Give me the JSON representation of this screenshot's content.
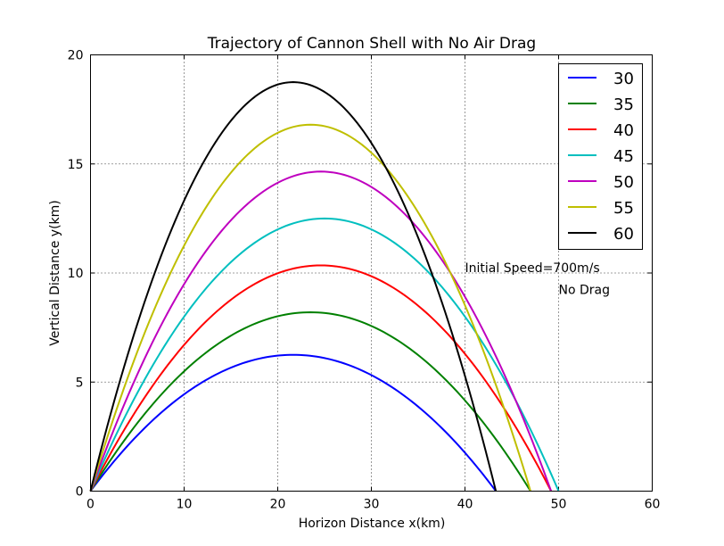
{
  "chart_data": {
    "type": "line",
    "title": "Trajectory of Cannon Shell with No Air Drag",
    "xlabel": "Horizon Distance x(km)",
    "ylabel": "Vertical Distance y(km)",
    "xlim": [
      0,
      60
    ],
    "ylim": [
      0,
      20
    ],
    "xticks": [
      "0",
      "10",
      "20",
      "30",
      "40",
      "50",
      "60"
    ],
    "yticks": [
      "0",
      "5",
      "10",
      "15",
      "20"
    ],
    "grid": true,
    "legend_position": "top-right",
    "annotations": [
      {
        "text": "Initial Speed=700m/s",
        "x": 40,
        "y": 10
      },
      {
        "text": "No Drag",
        "x": 50,
        "y": 9
      }
    ],
    "series": [
      {
        "name": "30",
        "color": "#0000ff",
        "range": 43.3,
        "apex_x": 21.65,
        "max_height": 6.25
      },
      {
        "name": "35",
        "color": "#008000",
        "range": 47.0,
        "apex_x": 23.5,
        "max_height": 8.2
      },
      {
        "name": "40",
        "color": "#ff0000",
        "range": 49.2,
        "apex_x": 24.6,
        "max_height": 10.35
      },
      {
        "name": "45",
        "color": "#00bfbf",
        "range": 50.0,
        "apex_x": 25.0,
        "max_height": 12.5
      },
      {
        "name": "50",
        "color": "#bf00bf",
        "range": 49.2,
        "apex_x": 24.6,
        "max_height": 14.65
      },
      {
        "name": "55",
        "color": "#bfbf00",
        "range": 47.0,
        "apex_x": 23.5,
        "max_height": 16.8
      },
      {
        "name": "60",
        "color": "#000000",
        "range": 43.3,
        "apex_x": 21.65,
        "max_height": 18.75
      }
    ]
  }
}
